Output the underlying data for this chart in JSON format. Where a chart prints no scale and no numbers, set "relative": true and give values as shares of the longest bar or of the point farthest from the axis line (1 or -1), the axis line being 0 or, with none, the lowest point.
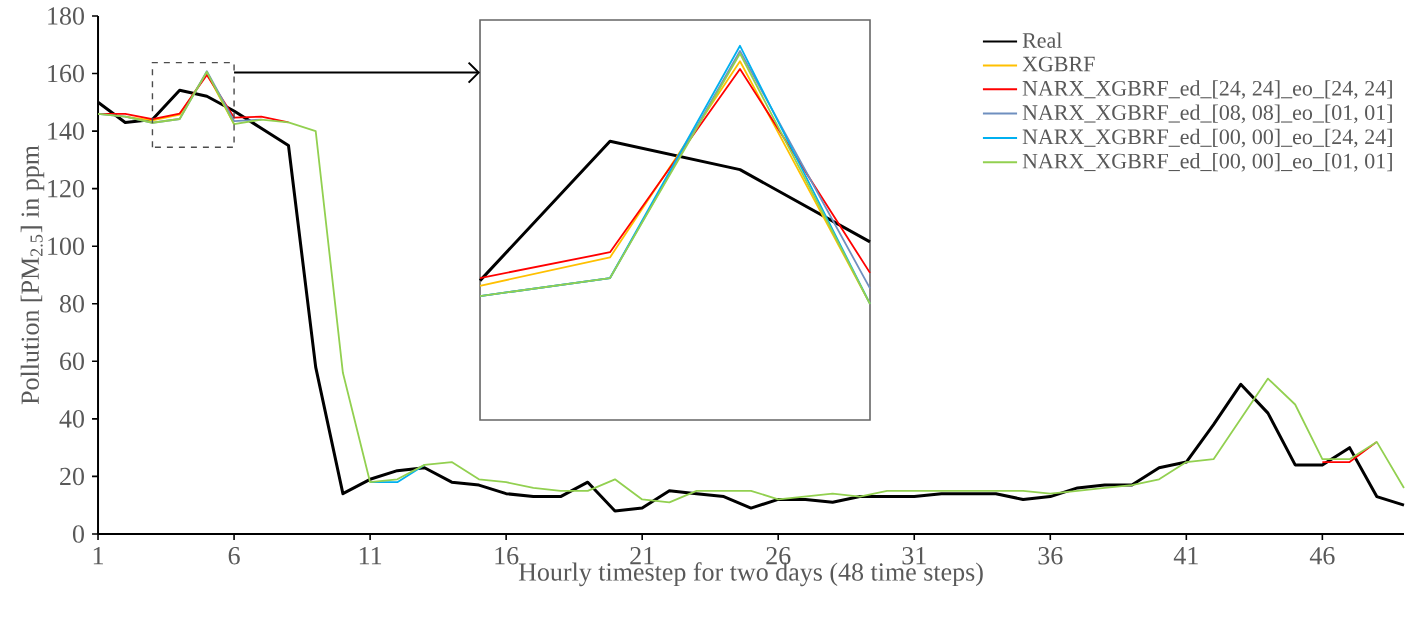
{
  "chart_data": [
    {
      "type": "line",
      "xlabel": "Hourly timestep for two days (48 time steps)",
      "ylabel": "Pollution [PM$_{2.5}$] in ppm",
      "x": [
        1,
        2,
        3,
        4,
        5,
        6,
        7,
        8,
        9,
        10,
        11,
        12,
        13,
        14,
        15,
        16,
        17,
        18,
        19,
        20,
        21,
        22,
        23,
        24,
        25,
        26,
        27,
        28,
        29,
        30,
        31,
        32,
        33,
        34,
        35,
        36,
        37,
        38,
        39,
        40,
        41,
        42,
        43,
        44,
        45,
        46,
        47,
        48,
        49
      ],
      "xlim": [
        1,
        49
      ],
      "xticks": [
        1,
        6,
        11,
        16,
        21,
        26,
        31,
        36,
        41,
        46
      ],
      "ylim": [
        0,
        180
      ],
      "yticks": [
        0,
        20,
        40,
        60,
        80,
        100,
        120,
        140,
        160,
        180
      ],
      "legend": "top right",
      "series": [
        {
          "name": "Real",
          "color": "#000000",
          "values": [
            150,
            143,
            144,
            154.2,
            152.1,
            147,
            141,
            135,
            58,
            14,
            19,
            22,
            23,
            18,
            17,
            14,
            13,
            13,
            18,
            8,
            9,
            15,
            14,
            13,
            9,
            12,
            12,
            11,
            13,
            13,
            13,
            14,
            14,
            14,
            12,
            13,
            16,
            17,
            17,
            23,
            25,
            38,
            52,
            42,
            24,
            24,
            30,
            13,
            10
          ]
        },
        {
          "name": "XGBRF",
          "color": "#ffc000",
          "values": [
            null,
            145,
            143.7,
            145.7,
            160.1,
            142.4,
            null,
            null,
            null,
            null,
            null,
            null,
            null,
            null,
            null,
            null,
            null,
            null,
            null,
            null,
            null,
            null,
            null,
            null,
            null,
            null,
            null,
            null,
            null,
            null,
            null,
            null,
            null,
            null,
            null,
            null,
            null,
            null,
            null,
            null,
            null,
            null,
            null,
            null,
            null,
            null,
            null,
            null,
            null
          ]
        },
        {
          "name": "NARX_XGBRF_ed_[24, 24]_eo_[24, 24]",
          "color": "#ff0000",
          "values": [
            146,
            146,
            144.2,
            146.1,
            159.5,
            144.7,
            145,
            143,
            null,
            null,
            null,
            null,
            null,
            null,
            null,
            null,
            null,
            null,
            null,
            null,
            null,
            null,
            null,
            null,
            null,
            null,
            null,
            null,
            null,
            null,
            null,
            null,
            null,
            null,
            null,
            null,
            null,
            null,
            null,
            null,
            null,
            null,
            null,
            null,
            null,
            25,
            25,
            32,
            null
          ]
        },
        {
          "name": "NARX_XGBRF_ed_[08, 08]_eo_[01, 01]",
          "color": "#6f8fbf",
          "values": [
            146,
            145,
            142.9,
            144.2,
            160.8,
            143.5,
            144,
            null,
            null,
            null,
            null,
            null,
            null,
            null,
            null,
            null,
            null,
            null,
            null,
            null,
            null,
            null,
            null,
            null,
            null,
            null,
            null,
            null,
            null,
            null,
            null,
            null,
            null,
            null,
            null,
            null,
            null,
            null,
            null,
            null,
            null,
            null,
            null,
            null,
            null,
            null,
            null,
            null,
            null
          ]
        },
        {
          "name": "NARX_XGBRF_ed_[00, 00]_eo_[24, 24]",
          "color": "#00b0f0",
          "values": [
            null,
            null,
            null,
            null,
            null,
            null,
            null,
            null,
            null,
            null,
            18,
            18,
            24,
            null,
            null,
            null,
            null,
            null,
            null,
            null,
            null,
            null,
            null,
            null,
            null,
            null,
            null,
            null,
            null,
            null,
            null,
            null,
            null,
            null,
            null,
            null,
            null,
            null,
            null,
            null,
            null,
            null,
            null,
            null,
            null,
            null,
            null,
            null,
            null
          ]
        },
        {
          "name": "NARX_XGBRF_ed_[00, 00]_eo_[01, 01]",
          "color": "#92d050",
          "values": [
            146,
            145,
            142.9,
            144.2,
            160.6,
            142.4,
            144,
            143,
            140,
            56,
            18,
            19,
            24,
            25,
            19,
            18,
            16,
            15,
            15,
            19,
            12,
            11,
            15,
            15,
            15,
            12,
            13,
            14,
            13,
            15,
            15,
            15,
            15,
            15,
            15,
            14,
            15,
            16,
            17,
            19,
            25,
            26,
            40,
            54,
            45,
            26,
            26,
            32,
            16
          ]
        }
      ]
    },
    {
      "type": "line",
      "categories": [
        null,
        null,
        null,
        null
      ],
      "relative": true,
      "series": [
        {
          "color": "#000000",
          "values": [
            0.09,
            0.63,
            0.52,
            0.24
          ]
        },
        {
          "color": "#ffc000",
          "values": [
            0.07,
            0.18,
            0.94,
            0
          ]
        },
        {
          "color": "#ff0000",
          "values": [
            0.1,
            0.2,
            0.91,
            0.12
          ]
        },
        {
          "color": "#6f8fbf",
          "values": [
            0.03,
            0.1,
            0.98,
            0.06
          ]
        },
        {
          "color": "#00b0f0",
          "values": [
            0.03,
            0.1,
            1,
            0
          ]
        },
        {
          "color": "#92d050",
          "values": [
            0.03,
            0.1,
            0.97,
            0
          ]
        }
      ]
    }
  ]
}
